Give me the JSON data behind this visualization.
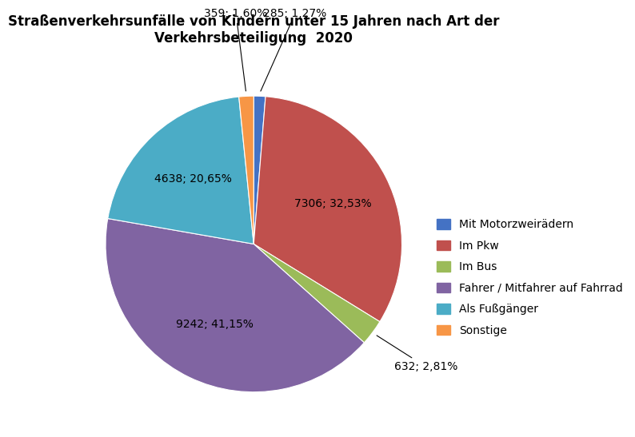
{
  "title": "Straßenverkehrsunfälle von Kindern unter 15 Jahren nach Art der\nVerkehrsbeteiligung  2020",
  "labels": [
    "Mit Motorzweirädern",
    "Im Pkw",
    "Im Bus",
    "Fahrer / Mitfahrer auf Fahrrad",
    "Als Fußgänger",
    "Sonstige"
  ],
  "values": [
    285,
    7306,
    632,
    9242,
    4638,
    359
  ],
  "colors": [
    "#4472C4",
    "#C0504D",
    "#9BBB59",
    "#8064A2",
    "#4BACC6",
    "#F79646"
  ],
  "autopct_labels": [
    "285; 1,27%",
    "7306; 32,53%",
    "632; 2,81%",
    "9242; 41,15%",
    "4638; 20,65%",
    "359; 1,60%"
  ],
  "startangle": 90,
  "background_color": "#FFFFFF",
  "title_fontsize": 12,
  "legend_fontsize": 10,
  "label_fontsize": 10
}
